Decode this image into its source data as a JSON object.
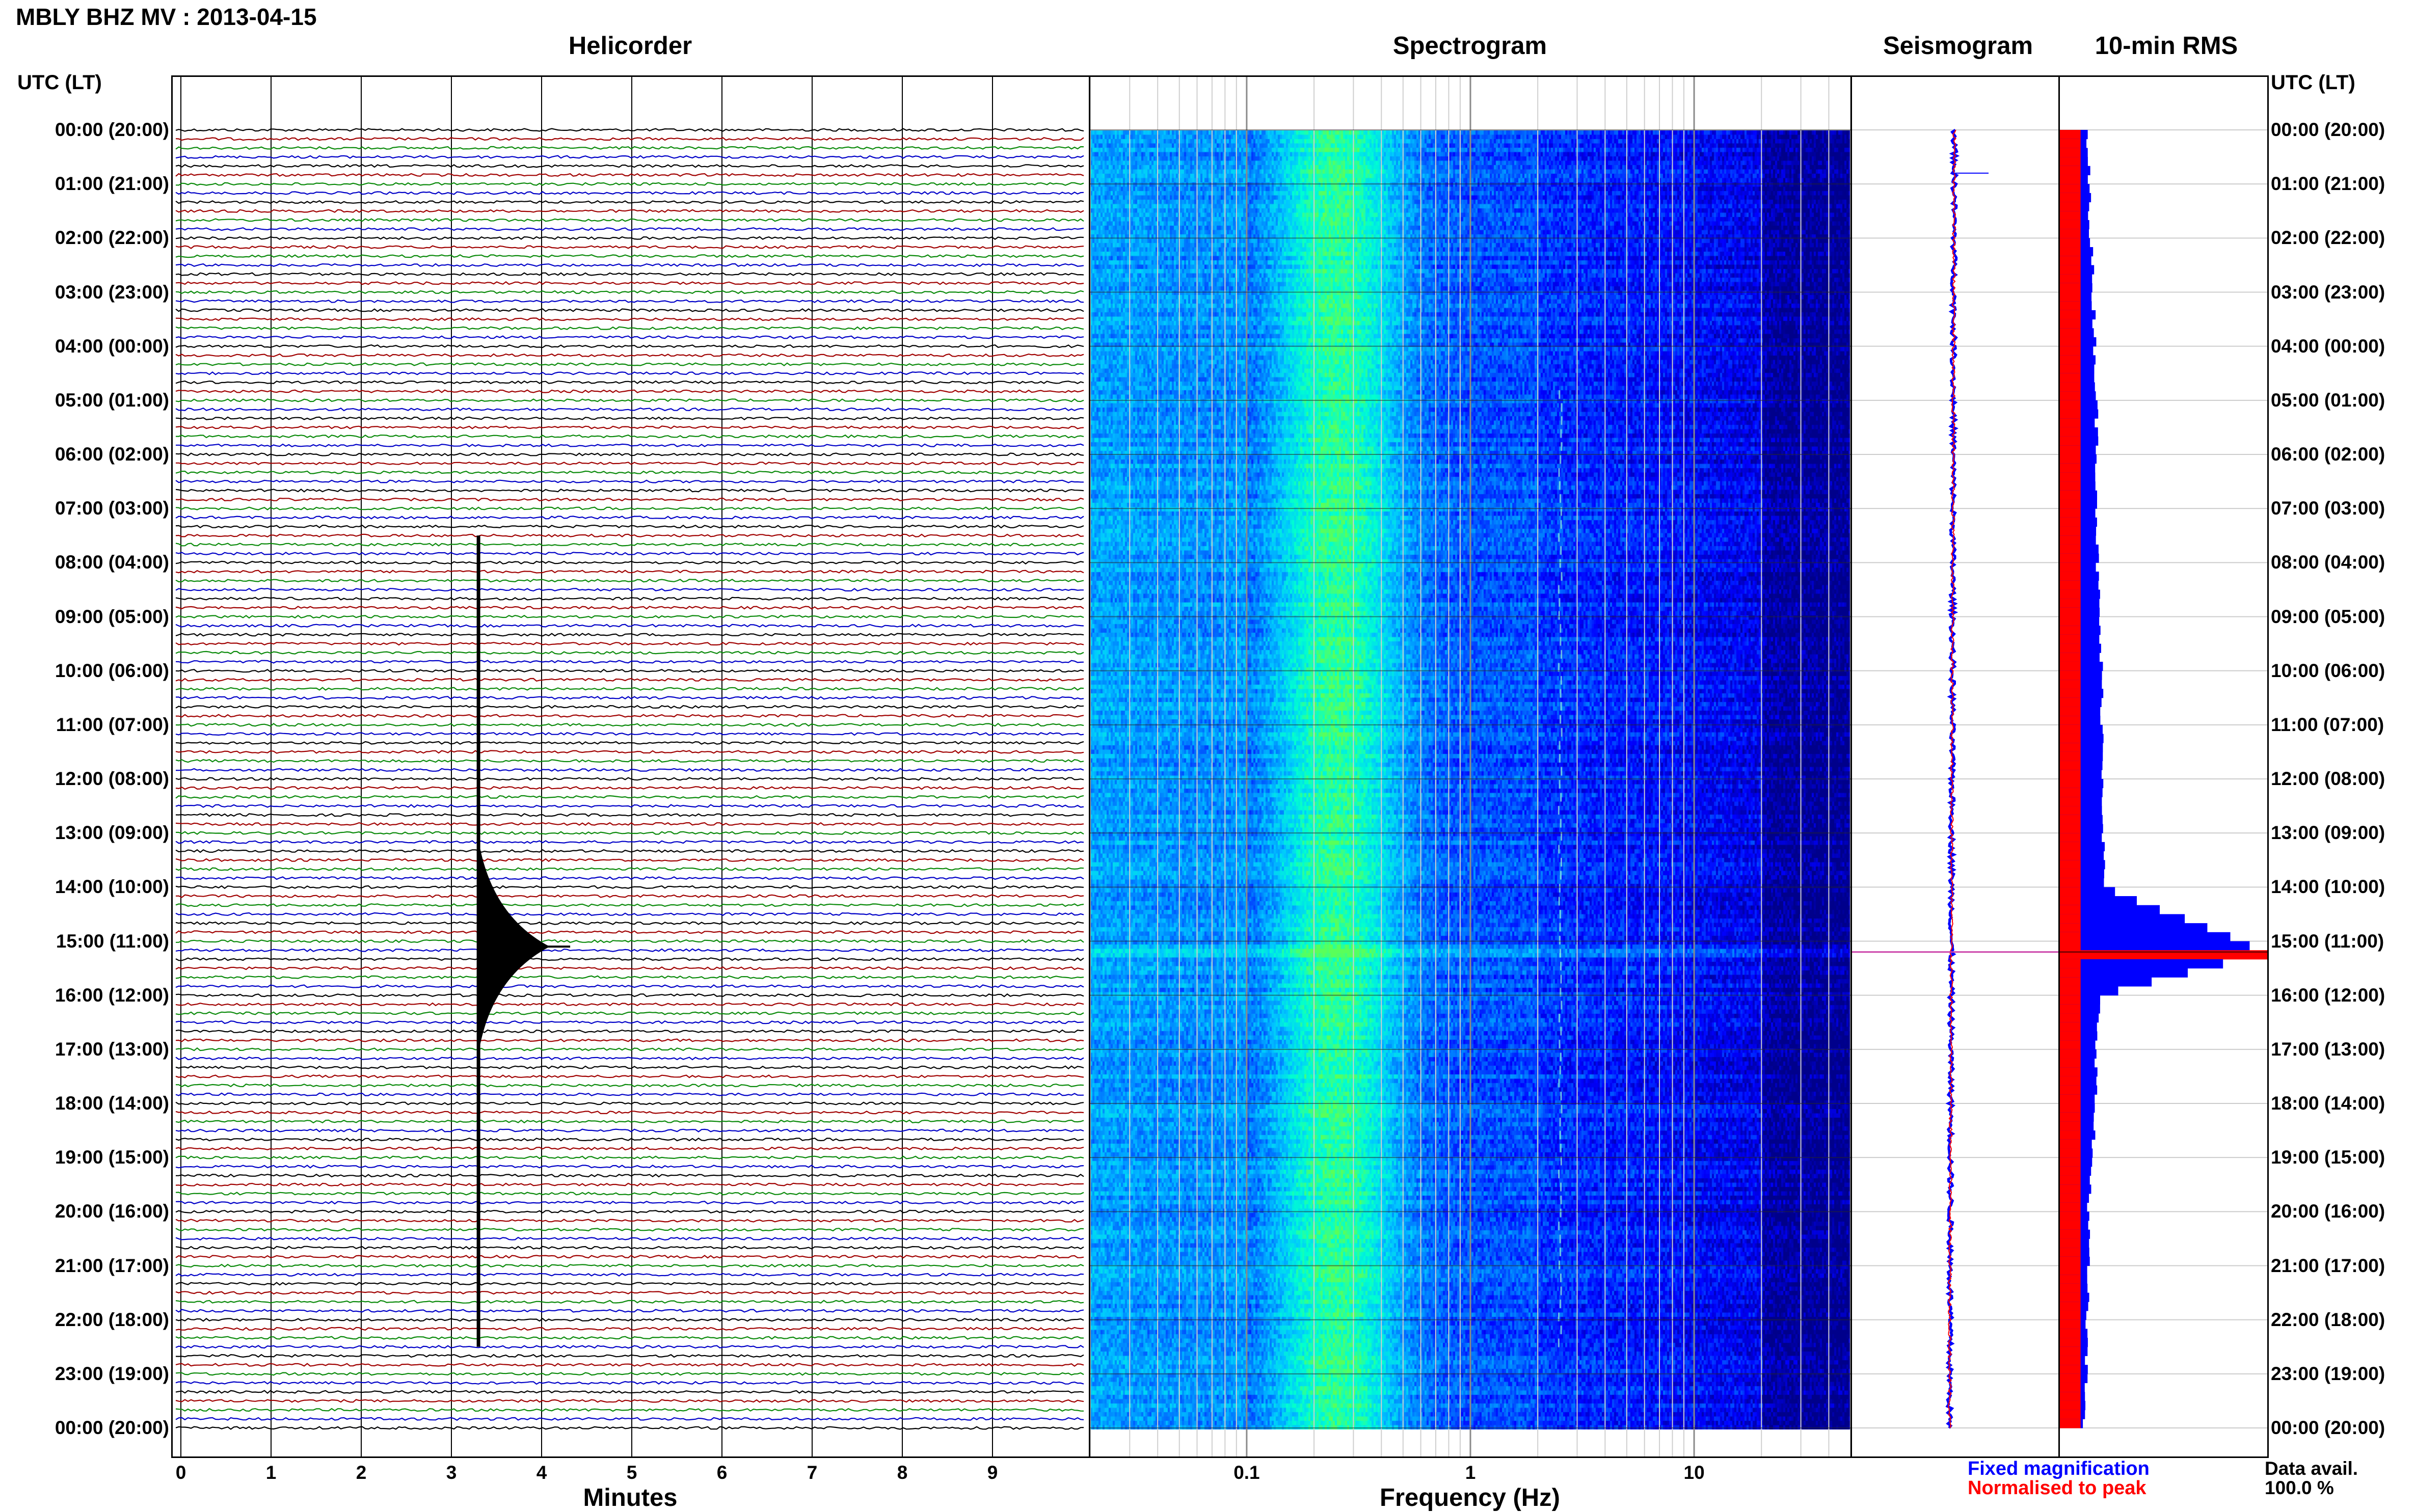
{
  "header": {
    "title": "MBLY BHZ MV : 2013-04-15"
  },
  "panels": {
    "helicorder": "Helicorder",
    "spectrogram": "Spectrogram",
    "seismogram": "Seismogram",
    "rms": "10-min RMS"
  },
  "axes": {
    "timezone_left": "UTC (LT)",
    "timezone_right": "UTC (LT)",
    "helicorder_xlabel": "Minutes",
    "spectrogram_xlabel": "Frequency (Hz)"
  },
  "footer": {
    "legend_fixed": "Fixed magnification",
    "legend_normalised": "Normalised to peak",
    "data_avail_label": "Data avail.",
    "data_avail_value": "100.0 %"
  },
  "colors": {
    "trace_cycle": [
      "#000000",
      "#a00000",
      "#0a8a0a",
      "#0000c8"
    ],
    "fixed": "#0000ff",
    "normalised": "#ff0000",
    "helicorder_event": "#000000"
  },
  "chart_data": [
    {
      "type": "line",
      "name": "helicorder",
      "title": "Helicorder",
      "xlabel": "Minutes",
      "ylabel": "UTC (LT)",
      "xlim": [
        0,
        10
      ],
      "x_ticks": [
        "0",
        "1",
        "2",
        "3",
        "4",
        "5",
        "6",
        "7",
        "8",
        "9"
      ],
      "y_ticks": [
        "00:00 (20:00)",
        "01:00 (21:00)",
        "02:00 (22:00)",
        "03:00 (23:00)",
        "04:00 (00:00)",
        "05:00 (01:00)",
        "06:00 (02:00)",
        "07:00 (03:00)",
        "08:00 (04:00)",
        "09:00 (05:00)",
        "10:00 (06:00)",
        "11:00 (07:00)",
        "12:00 (08:00)",
        "13:00 (09:00)",
        "14:00 (10:00)",
        "15:00 (11:00)",
        "16:00 (12:00)",
        "17:00 (13:00)",
        "18:00 (14:00)",
        "19:00 (15:00)",
        "20:00 (16:00)",
        "21:00 (17:00)",
        "22:00 (18:00)",
        "23:00 (19:00)",
        "00:00 (20:00)"
      ],
      "rows_per_hour": 6,
      "row_minutes": 10,
      "event": {
        "minute": 3.3,
        "start_hour": 7.5,
        "peak_hour": 15.1,
        "end_hour": 22.5
      },
      "grid": true
    },
    {
      "type": "heatmap",
      "name": "spectrogram",
      "title": "Spectrogram",
      "xlabel": "Frequency (Hz)",
      "x_scale": "log",
      "xlim": [
        0.02,
        50
      ],
      "x_ticks": [
        0.1,
        1,
        10
      ],
      "x_tick_labels": [
        "0.1",
        "1",
        "10"
      ],
      "colormap": [
        "#00008b",
        "#0000ff",
        "#0070ff",
        "#00c8ff",
        "#00ffd2",
        "#5aff5a"
      ],
      "microseism_peak_hz": 0.25,
      "spectral_line_hz": 2.5,
      "event_hour": 15.1,
      "grid": true
    },
    {
      "type": "line",
      "name": "seismogram",
      "title": "Seismogram",
      "series": [
        "Fixed magnification",
        "Normalised to peak"
      ],
      "event_hour": 15.2,
      "grid": true
    },
    {
      "type": "bar",
      "name": "rms",
      "title": "10-min RMS",
      "orientation": "horizontal",
      "rows": 144,
      "normalised_level": 0.1,
      "peak_hour": 15.2,
      "fixed_profile": [
        [
          0,
          0.13
        ],
        [
          2,
          0.15
        ],
        [
          4,
          0.17
        ],
        [
          6,
          0.18
        ],
        [
          8,
          0.18
        ],
        [
          10,
          0.2
        ],
        [
          12,
          0.21
        ],
        [
          14,
          0.21
        ],
        [
          15.2,
          1.0
        ],
        [
          16,
          0.19
        ],
        [
          18,
          0.17
        ],
        [
          20,
          0.14
        ],
        [
          22,
          0.13
        ],
        [
          24,
          0.12
        ]
      ],
      "grid": true
    }
  ]
}
